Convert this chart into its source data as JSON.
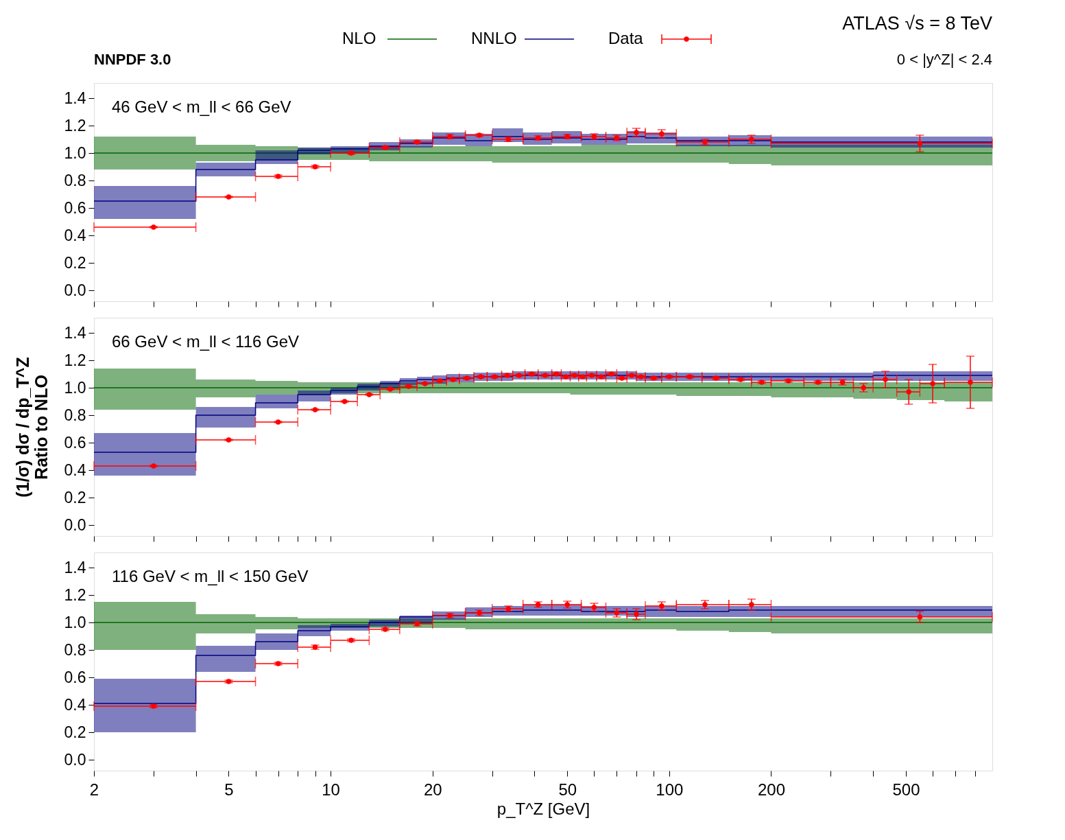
{
  "chart_data": [
    {
      "type": "step",
      "annotations": [
        "NNPDF 3.0",
        "ATLAS   √s = 8 TeV",
        "0 < |y^Z| < 2.4",
        "46 GeV < m_ll < 66 GeV"
      ],
      "legend": "top",
      "tick_labels": "y",
      "grid": false,
      "log": "x",
      "xlim": [
        2,
        900
      ],
      "xticks": [
        2,
        {
          "value": 3,
          "label": null
        },
        {
          "value": 4,
          "label": null
        },
        5,
        {
          "value": 6,
          "label": null
        },
        {
          "value": 7,
          "label": null
        },
        {
          "value": 8,
          "label": null
        },
        {
          "value": 9,
          "label": null
        },
        10,
        20,
        {
          "value": 30,
          "label": null
        },
        {
          "value": 40,
          "label": null
        },
        50,
        {
          "value": 60,
          "label": null
        },
        {
          "value": 70,
          "label": null
        },
        {
          "value": 80,
          "label": null
        },
        {
          "value": 90,
          "label": null
        },
        100,
        200,
        {
          "value": 300,
          "label": null
        },
        {
          "value": 400,
          "label": null
        },
        500,
        {
          "value": 600,
          "label": null
        },
        {
          "value": 700,
          "label": null
        },
        {
          "value": 800,
          "label": null
        }
      ],
      "ylim": [
        -0.08,
        1.51
      ],
      "yticks": [
        {
          "value": 0,
          "label": "0.0"
        },
        {
          "value": 0.2,
          "label": "0.2"
        },
        {
          "value": 0.4,
          "label": "0.4"
        },
        {
          "value": 0.6,
          "label": "0.6"
        },
        {
          "value": 0.8,
          "label": "0.8"
        },
        {
          "value": 1,
          "label": "1.0"
        },
        {
          "value": 1.2,
          "label": "1.2"
        },
        {
          "value": 1.4,
          "label": "1.4"
        }
      ],
      "series": [
        {
          "name": "NLO",
          "color": "#006400",
          "x": [
            2,
            4,
            6,
            8,
            10,
            13,
            16,
            20,
            25,
            30,
            37,
            45,
            55,
            65,
            75,
            85,
            105,
            150,
            200,
            900
          ],
          "values": [
            1,
            1,
            1,
            1,
            1,
            1,
            1,
            1,
            1,
            1,
            1,
            1,
            1,
            1,
            1,
            1,
            1,
            1,
            1,
            1
          ],
          "lower": [
            0.88,
            0.94,
            0.95,
            0.95,
            0.95,
            0.94,
            0.94,
            0.94,
            0.94,
            0.93,
            0.93,
            0.93,
            0.93,
            0.93,
            0.93,
            0.93,
            0.93,
            0.92,
            0.91,
            0.91
          ],
          "upper": [
            1.12,
            1.06,
            1.05,
            1.04,
            1.04,
            1.05,
            1.05,
            1.05,
            1.05,
            1.05,
            1.05,
            1.05,
            1.06,
            1.06,
            1.06,
            1.06,
            1.06,
            1.06,
            1.06,
            1.06
          ]
        },
        {
          "name": "NNLO",
          "color": "#000080",
          "x": [
            2,
            4,
            6,
            8,
            10,
            13,
            16,
            20,
            25,
            30,
            37,
            45,
            55,
            65,
            75,
            85,
            105,
            150,
            200,
            900
          ],
          "values": [
            0.65,
            0.88,
            0.95,
            1.02,
            1.03,
            1.05,
            1.07,
            1.11,
            1.09,
            1.12,
            1.1,
            1.11,
            1.1,
            1.1,
            1.12,
            1.11,
            1.09,
            1.09,
            1.08,
            1.08
          ],
          "lower": [
            0.52,
            0.83,
            0.92,
            0.99,
            1.0,
            1.02,
            1.04,
            1.06,
            1.05,
            1.08,
            1.06,
            1.07,
            1.06,
            1.06,
            1.07,
            1.07,
            1.05,
            1.05,
            1.04,
            1.04
          ],
          "upper": [
            0.76,
            0.93,
            1.02,
            1.04,
            1.05,
            1.08,
            1.1,
            1.15,
            1.14,
            1.18,
            1.15,
            1.16,
            1.14,
            1.14,
            1.16,
            1.15,
            1.12,
            1.13,
            1.12,
            1.12
          ]
        },
        {
          "name": "Data",
          "type": "scatter",
          "color": "#ff0000",
          "marker": "circle",
          "x": [
            3,
            5,
            7,
            9,
            11.5,
            14.5,
            18,
            22.5,
            27.5,
            33.5,
            41,
            50,
            60,
            70,
            80,
            95,
            127.5,
            175,
            550
          ],
          "values": [
            0.46,
            0.68,
            0.83,
            0.9,
            1.0,
            1.04,
            1.08,
            1.12,
            1.13,
            1.1,
            1.11,
            1.12,
            1.12,
            1.11,
            1.15,
            1.14,
            1.08,
            1.1,
            1.07
          ],
          "errors": [
            0.005,
            0.005,
            0.01,
            0.01,
            0.01,
            0.01,
            0.01,
            0.015,
            0.01,
            0.015,
            0.015,
            0.015,
            0.02,
            0.02,
            0.03,
            0.03,
            0.02,
            0.03,
            0.06
          ],
          "xerrors": [
            1,
            1,
            1,
            1,
            1.5,
            1.5,
            2,
            2.5,
            2.5,
            3.5,
            4,
            5,
            5,
            5,
            5,
            10,
            22.5,
            25,
            350
          ]
        }
      ]
    },
    {
      "type": "step",
      "annotations": [
        "66 GeV < m_ll < 116 GeV"
      ],
      "ylabel": "(1/σ) dσ / dp_T^Z\nRatio to NLO",
      "tick_labels": "y",
      "grid": false,
      "log": "x",
      "xlim": [
        2,
        900
      ],
      "xticks": [
        2,
        {
          "value": 3,
          "label": null
        },
        {
          "value": 4,
          "label": null
        },
        5,
        {
          "value": 6,
          "label": null
        },
        {
          "value": 7,
          "label": null
        },
        {
          "value": 8,
          "label": null
        },
        {
          "value": 9,
          "label": null
        },
        10,
        20,
        {
          "value": 30,
          "label": null
        },
        {
          "value": 40,
          "label": null
        },
        50,
        {
          "value": 60,
          "label": null
        },
        {
          "value": 70,
          "label": null
        },
        {
          "value": 80,
          "label": null
        },
        {
          "value": 90,
          "label": null
        },
        100,
        200,
        {
          "value": 300,
          "label": null
        },
        {
          "value": 400,
          "label": null
        },
        500,
        {
          "value": 600,
          "label": null
        },
        {
          "value": 700,
          "label": null
        },
        {
          "value": 800,
          "label": null
        }
      ],
      "ylim": [
        -0.08,
        1.51
      ],
      "yticks": [
        {
          "value": 0,
          "label": "0.0"
        },
        {
          "value": 0.2,
          "label": "0.2"
        },
        {
          "value": 0.4,
          "label": "0.4"
        },
        {
          "value": 0.6,
          "label": "0.6"
        },
        {
          "value": 0.8,
          "label": "0.8"
        },
        {
          "value": 1,
          "label": "1.0"
        },
        {
          "value": 1.2,
          "label": "1.2"
        },
        {
          "value": 1.4,
          "label": "1.4"
        }
      ],
      "series": [
        {
          "color": "#006400",
          "x": [
            2,
            4,
            6,
            8,
            10,
            12,
            14,
            16,
            18,
            20,
            22,
            24,
            26.5,
            29,
            32,
            34.5,
            37.5,
            41,
            45,
            48,
            51,
            54,
            57,
            61,
            65,
            70,
            75,
            80,
            85,
            95,
            105,
            125,
            150,
            175,
            200,
            250,
            300,
            350,
            400,
            470,
            550,
            650,
            900
          ],
          "values": [
            1,
            1,
            1,
            1,
            1,
            1,
            1,
            1,
            1,
            1,
            1,
            1,
            1,
            1,
            1,
            1,
            1,
            1,
            1,
            1,
            1,
            1,
            1,
            1,
            1,
            1,
            1,
            1,
            1,
            1,
            1,
            1,
            1,
            1,
            1,
            1,
            1,
            1,
            1,
            1,
            1,
            1,
            1
          ],
          "lower": [
            0.84,
            0.93,
            0.95,
            0.95,
            0.96,
            0.96,
            0.96,
            0.96,
            0.96,
            0.96,
            0.96,
            0.96,
            0.96,
            0.96,
            0.96,
            0.96,
            0.96,
            0.96,
            0.96,
            0.96,
            0.95,
            0.95,
            0.95,
            0.95,
            0.95,
            0.95,
            0.95,
            0.95,
            0.95,
            0.95,
            0.94,
            0.94,
            0.94,
            0.94,
            0.93,
            0.93,
            0.93,
            0.92,
            0.92,
            0.91,
            0.91,
            0.9,
            0.9
          ],
          "upper": [
            1.14,
            1.06,
            1.05,
            1.04,
            1.04,
            1.04,
            1.04,
            1.04,
            1.04,
            1.04,
            1.04,
            1.04,
            1.04,
            1.04,
            1.04,
            1.04,
            1.04,
            1.04,
            1.04,
            1.04,
            1.04,
            1.04,
            1.04,
            1.04,
            1.04,
            1.04,
            1.04,
            1.04,
            1.04,
            1.04,
            1.04,
            1.04,
            1.04,
            1.04,
            1.04,
            1.04,
            1.04,
            1.04,
            1.04,
            1.04,
            1.04,
            1.04,
            1.04
          ]
        },
        {
          "color": "#000080",
          "x": [
            2,
            4,
            6,
            8,
            10,
            12,
            14,
            16,
            18,
            20,
            22,
            24,
            26.5,
            29,
            32,
            34.5,
            37.5,
            41,
            45,
            48,
            51,
            54,
            57,
            61,
            65,
            70,
            75,
            80,
            85,
            95,
            105,
            125,
            150,
            175,
            200,
            250,
            300,
            350,
            400,
            470,
            550,
            650,
            900
          ],
          "values": [
            0.53,
            0.8,
            0.89,
            0.95,
            0.98,
            1.01,
            1.03,
            1.05,
            1.06,
            1.06,
            1.07,
            1.07,
            1.08,
            1.08,
            1.08,
            1.09,
            1.09,
            1.09,
            1.09,
            1.09,
            1.09,
            1.09,
            1.09,
            1.09,
            1.09,
            1.09,
            1.09,
            1.08,
            1.08,
            1.08,
            1.08,
            1.08,
            1.08,
            1.08,
            1.08,
            1.08,
            1.08,
            1.08,
            1.09,
            1.09,
            1.09,
            1.09,
            1.09
          ],
          "lower": [
            0.36,
            0.71,
            0.85,
            0.9,
            0.95,
            0.98,
            1.0,
            1.02,
            1.03,
            1.03,
            1.04,
            1.04,
            1.05,
            1.05,
            1.05,
            1.06,
            1.06,
            1.06,
            1.06,
            1.06,
            1.06,
            1.06,
            1.06,
            1.06,
            1.06,
            1.06,
            1.06,
            1.05,
            1.05,
            1.05,
            1.05,
            1.05,
            1.05,
            1.05,
            1.05,
            1.05,
            1.05,
            1.05,
            1.05,
            1.05,
            1.05,
            1.05,
            1.05
          ],
          "upper": [
            0.67,
            0.86,
            0.95,
            0.98,
            1.0,
            1.03,
            1.05,
            1.07,
            1.08,
            1.09,
            1.1,
            1.1,
            1.11,
            1.11,
            1.11,
            1.12,
            1.12,
            1.12,
            1.12,
            1.12,
            1.12,
            1.12,
            1.12,
            1.12,
            1.12,
            1.12,
            1.12,
            1.11,
            1.11,
            1.11,
            1.11,
            1.11,
            1.11,
            1.11,
            1.11,
            1.11,
            1.11,
            1.11,
            1.12,
            1.12,
            1.12,
            1.12,
            1.12
          ]
        },
        {
          "type": "scatter",
          "color": "#ff0000",
          "marker": "circle",
          "x": [
            3,
            5,
            7,
            9,
            11,
            13,
            15,
            17,
            19,
            21,
            23,
            25.25,
            27.75,
            30.5,
            33.25,
            36,
            39.25,
            43,
            46.5,
            49.5,
            52.5,
            55.5,
            59,
            63,
            67.5,
            72.5,
            77.5,
            82.5,
            90,
            100,
            115,
            137.5,
            162.5,
            187.5,
            225,
            275,
            325,
            375,
            435,
            510,
            600,
            775
          ],
          "values": [
            0.43,
            0.62,
            0.75,
            0.84,
            0.9,
            0.95,
            0.99,
            1.01,
            1.03,
            1.05,
            1.06,
            1.07,
            1.08,
            1.08,
            1.09,
            1.09,
            1.1,
            1.09,
            1.1,
            1.08,
            1.09,
            1.08,
            1.09,
            1.08,
            1.1,
            1.07,
            1.09,
            1.08,
            1.07,
            1.08,
            1.08,
            1.07,
            1.06,
            1.04,
            1.05,
            1.04,
            1.04,
            1.0,
            1.06,
            0.97,
            1.03,
            1.04
          ],
          "errors": [
            0.005,
            0.005,
            0.005,
            0.005,
            0.005,
            0.005,
            0.005,
            0.005,
            0.005,
            0.005,
            0.01,
            0.01,
            0.01,
            0.01,
            0.01,
            0.01,
            0.01,
            0.01,
            0.01,
            0.01,
            0.01,
            0.01,
            0.01,
            0.01,
            0.01,
            0.01,
            0.01,
            0.01,
            0.01,
            0.01,
            0.01,
            0.01,
            0.01,
            0.01,
            0.01,
            0.01,
            0.02,
            0.03,
            0.06,
            0.09,
            0.14,
            0.19
          ],
          "xerrors": [
            1,
            1,
            1,
            1,
            1,
            1,
            1,
            1,
            1,
            1,
            1,
            1.25,
            1.25,
            1.5,
            1.25,
            1.5,
            1.75,
            2,
            1.5,
            1.5,
            1.5,
            1.5,
            2,
            2,
            2.5,
            2.5,
            2.5,
            2.5,
            5,
            5,
            10,
            12.5,
            12.5,
            12.5,
            25,
            25,
            25,
            25,
            35,
            40,
            50,
            125
          ]
        }
      ]
    },
    {
      "type": "step",
      "annotations": [
        "116 GeV < m_ll < 150 GeV"
      ],
      "xlabel": "p_T^Z [GeV]",
      "grid": false,
      "log": "x",
      "xlim": [
        2,
        900
      ],
      "xticks": [
        2,
        {
          "value": 3,
          "label": null
        },
        {
          "value": 4,
          "label": null
        },
        5,
        {
          "value": 6,
          "label": null
        },
        {
          "value": 7,
          "label": null
        },
        {
          "value": 8,
          "label": null
        },
        {
          "value": 9,
          "label": null
        },
        10,
        20,
        {
          "value": 30,
          "label": null
        },
        {
          "value": 40,
          "label": null
        },
        50,
        {
          "value": 60,
          "label": null
        },
        {
          "value": 70,
          "label": null
        },
        {
          "value": 80,
          "label": null
        },
        {
          "value": 90,
          "label": null
        },
        100,
        200,
        {
          "value": 300,
          "label": null
        },
        {
          "value": 400,
          "label": null
        },
        500,
        {
          "value": 600,
          "label": null
        },
        {
          "value": 700,
          "label": null
        },
        {
          "value": 800,
          "label": null
        }
      ],
      "ylim": [
        -0.08,
        1.51
      ],
      "yticks": [
        {
          "value": 0,
          "label": "0.0"
        },
        {
          "value": 0.2,
          "label": "0.2"
        },
        {
          "value": 0.4,
          "label": "0.4"
        },
        {
          "value": 0.6,
          "label": "0.6"
        },
        {
          "value": 0.8,
          "label": "0.8"
        },
        {
          "value": 1,
          "label": "1.0"
        },
        {
          "value": 1.2,
          "label": "1.2"
        },
        {
          "value": 1.4,
          "label": "1.4"
        }
      ],
      "series": [
        {
          "color": "#006400",
          "x": [
            2,
            4,
            6,
            8,
            10,
            13,
            16,
            20,
            25,
            30,
            37,
            45,
            55,
            65,
            75,
            85,
            105,
            150,
            200,
            900
          ],
          "values": [
            1,
            1,
            1,
            1,
            1,
            1,
            1,
            1,
            1,
            1,
            1,
            1,
            1,
            1,
            1,
            1,
            1,
            1,
            1,
            1
          ],
          "lower": [
            0.8,
            0.92,
            0.95,
            0.96,
            0.96,
            0.96,
            0.96,
            0.96,
            0.95,
            0.95,
            0.95,
            0.95,
            0.95,
            0.95,
            0.95,
            0.95,
            0.94,
            0.93,
            0.92,
            0.92
          ],
          "upper": [
            1.15,
            1.06,
            1.04,
            1.03,
            1.03,
            1.03,
            1.03,
            1.03,
            1.03,
            1.03,
            1.03,
            1.03,
            1.03,
            1.03,
            1.03,
            1.03,
            1.03,
            1.03,
            1.03,
            1.03
          ]
        },
        {
          "color": "#000080",
          "x": [
            2,
            4,
            6,
            8,
            10,
            13,
            16,
            20,
            25,
            30,
            37,
            45,
            55,
            65,
            75,
            85,
            105,
            150,
            200,
            900
          ],
          "values": [
            0.41,
            0.76,
            0.86,
            0.94,
            0.97,
            1.0,
            1.04,
            1.05,
            1.07,
            1.08,
            1.09,
            1.09,
            1.08,
            1.08,
            1.08,
            1.09,
            1.08,
            1.09,
            1.09,
            1.09
          ],
          "lower": [
            0.2,
            0.64,
            0.8,
            0.9,
            0.94,
            0.97,
            0.99,
            1.02,
            1.04,
            1.05,
            1.05,
            1.05,
            1.05,
            1.05,
            1.04,
            1.04,
            1.04,
            1.04,
            1.04,
            1.04
          ],
          "upper": [
            0.59,
            0.83,
            0.92,
            0.98,
            0.99,
            1.02,
            1.05,
            1.08,
            1.11,
            1.12,
            1.13,
            1.13,
            1.12,
            1.12,
            1.12,
            1.12,
            1.12,
            1.12,
            1.12,
            1.12
          ]
        },
        {
          "type": "scatter",
          "color": "#ff0000",
          "marker": "circle",
          "x": [
            3,
            5,
            7,
            9,
            11.5,
            14.5,
            18,
            22.5,
            27.5,
            33.5,
            41,
            50,
            60,
            70,
            80,
            95,
            127.5,
            175,
            550
          ],
          "values": [
            0.39,
            0.57,
            0.7,
            0.82,
            0.87,
            0.95,
            0.99,
            1.05,
            1.07,
            1.1,
            1.13,
            1.13,
            1.11,
            1.07,
            1.06,
            1.12,
            1.13,
            1.13,
            1.04
          ],
          "errors": [
            0.01,
            0.01,
            0.01,
            0.015,
            0.01,
            0.01,
            0.015,
            0.015,
            0.02,
            0.02,
            0.02,
            0.025,
            0.03,
            0.03,
            0.04,
            0.03,
            0.03,
            0.04,
            0.04
          ],
          "xerrors": [
            1,
            1,
            1,
            1,
            1.5,
            1.5,
            2,
            2.5,
            2.5,
            3.5,
            4,
            5,
            5,
            5,
            5,
            10,
            22.5,
            25,
            350
          ]
        }
      ]
    }
  ]
}
